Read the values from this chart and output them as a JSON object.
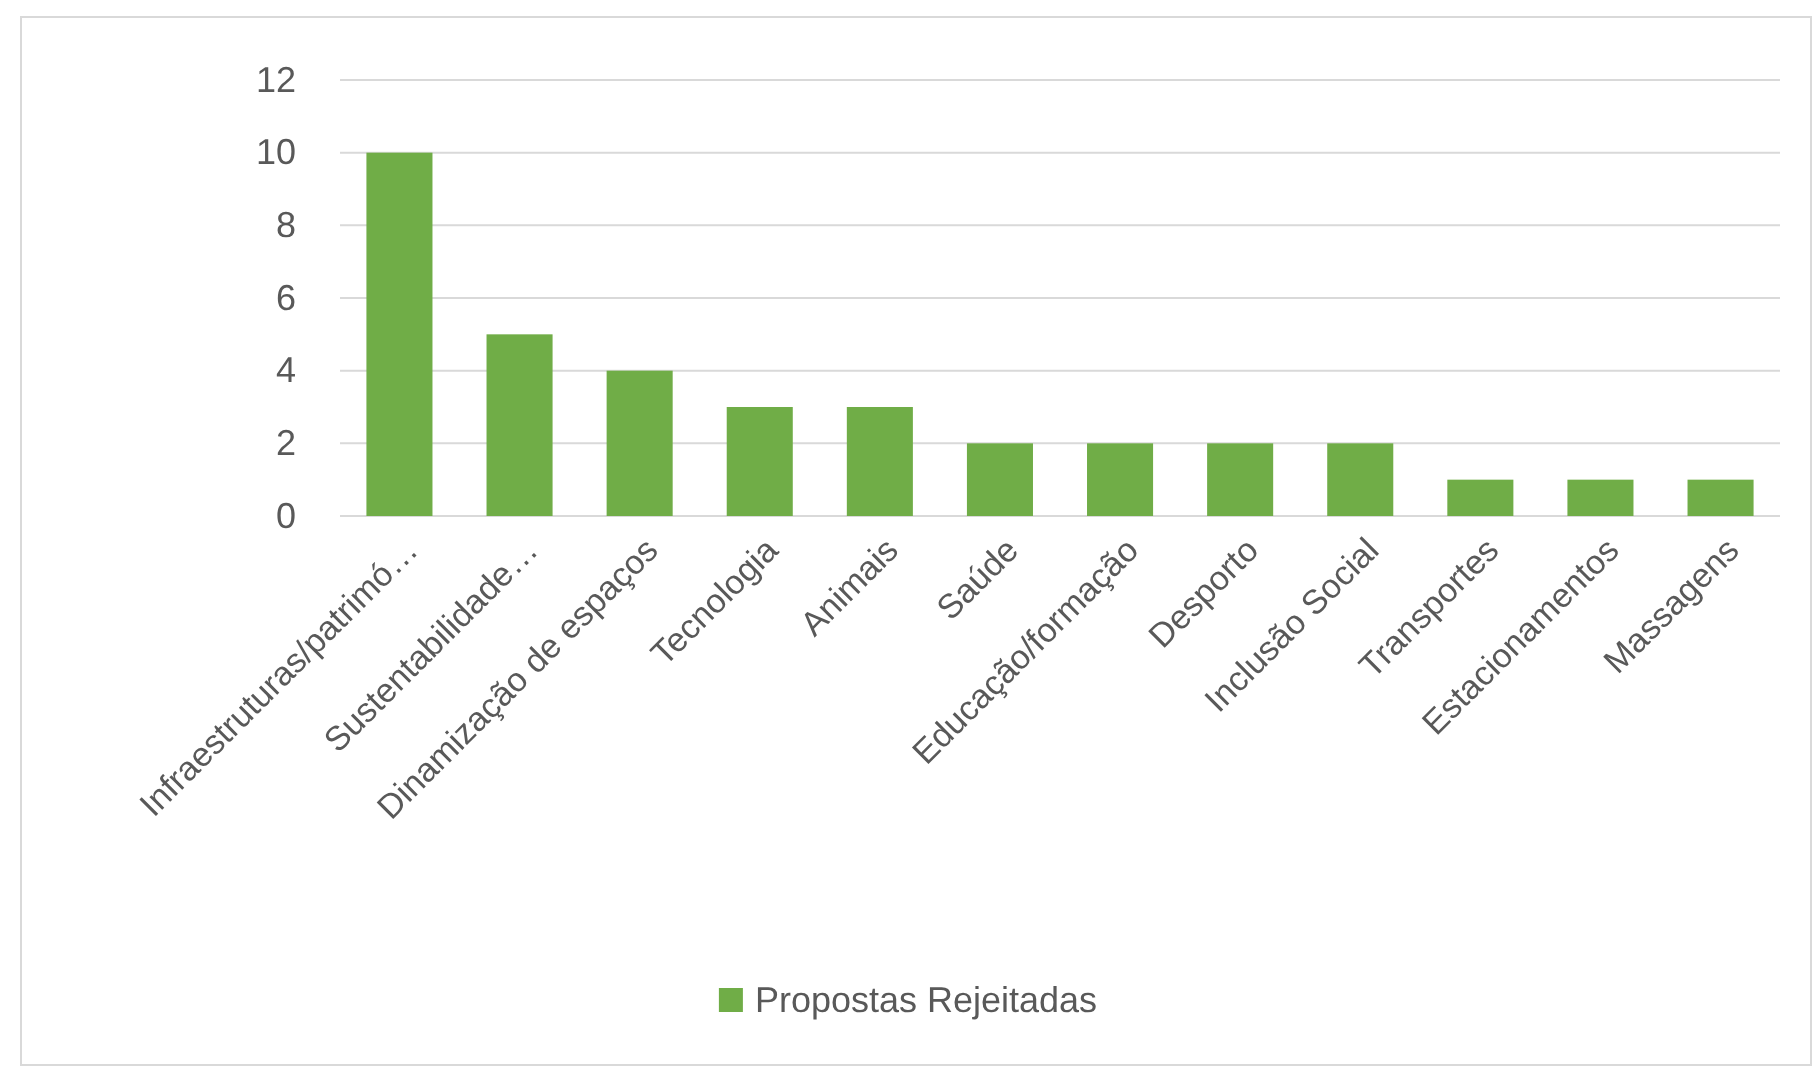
{
  "chart_data": {
    "type": "bar",
    "categories": [
      "Infraestruturas/patrimó…",
      "Sustentabilidade…",
      "Dinamização de espaços",
      "Tecnologia",
      "Animais",
      "Saúde",
      "Educação/formação",
      "Desporto",
      "Inclusão Social",
      "Transportes",
      "Estacionamentos",
      "Massagens"
    ],
    "series": [
      {
        "name": "Propostas Rejeitadas",
        "color": "#70ad47",
        "values": [
          10,
          5,
          4,
          3,
          3,
          2,
          2,
          2,
          2,
          1,
          1,
          1
        ]
      }
    ],
    "ylim": [
      0,
      12
    ],
    "yticks": [
      0,
      2,
      4,
      6,
      8,
      10,
      12
    ],
    "grid": "y",
    "legend": "bottom"
  }
}
